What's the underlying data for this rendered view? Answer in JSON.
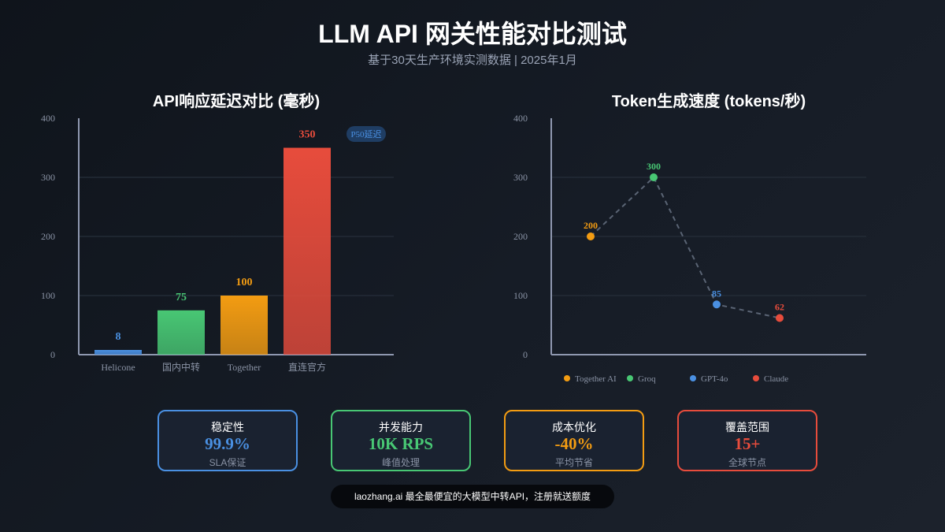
{
  "header": {
    "title": "LLM API 网关性能对比测试",
    "subtitle": "基于30天生产环境实测数据 | 2025年1月"
  },
  "chart_data": [
    {
      "type": "bar",
      "title": "API响应延迟对比 (毫秒)",
      "categories": [
        "Helicone",
        "国内中转",
        "Together",
        "直连官方"
      ],
      "values": [
        8,
        75,
        100,
        350
      ],
      "colors": [
        "#4a90e2",
        "#48c774",
        "#f39c12",
        "#e74c3c"
      ],
      "ylim": [
        0,
        400
      ],
      "yticks": [
        "0",
        "100",
        "200",
        "300",
        "400"
      ],
      "grid": true,
      "badge": "P50延迟"
    },
    {
      "type": "line",
      "title": "Token生成速度 (tokens/秒)",
      "categories": [
        "Together AI",
        "Groq",
        "GPT-4o",
        "Claude"
      ],
      "values": [
        200,
        300,
        85,
        62
      ],
      "colors": [
        "#f39c12",
        "#48c774",
        "#4a90e2",
        "#e74c3c"
      ],
      "ylim": [
        0,
        400
      ],
      "yticks": [
        "0",
        "100",
        "200",
        "300",
        "400"
      ],
      "grid": true,
      "legend": "bottom",
      "line_style": "dashed"
    }
  ],
  "cards": [
    {
      "label": "稳定性",
      "value": "99.9%",
      "sub": "SLA保证",
      "color": "#4a90e2"
    },
    {
      "label": "并发能力",
      "value": "10K RPS",
      "sub": "峰值处理",
      "color": "#48c774"
    },
    {
      "label": "成本优化",
      "value": "-40%",
      "sub": "平均节省",
      "color": "#f39c12"
    },
    {
      "label": "覆盖范围",
      "value": "15+",
      "sub": "全球节点",
      "color": "#e74c3c"
    }
  ],
  "footer": "laozhang.ai 最全最便宜的大模型中转API，注册就送额度"
}
